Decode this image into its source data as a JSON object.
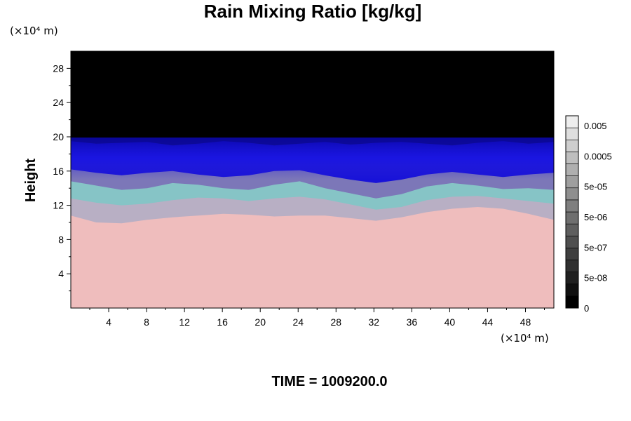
{
  "chart_data": {
    "type": "heatmap",
    "title": "Rain Mixing Ratio [kg/kg]",
    "x_unit_label": "(×10⁴ m)",
    "y_unit_label": "(×10⁴ m)",
    "xlabel": "",
    "ylabel": "Height",
    "x_ticks": [
      "4",
      "8",
      "12",
      "16",
      "20",
      "24",
      "28",
      "32",
      "36",
      "40",
      "44",
      "48"
    ],
    "y_ticks": [
      "4",
      "8",
      "12",
      "16",
      "20",
      "24",
      "28"
    ],
    "xlim": [
      0,
      51
    ],
    "ylim": [
      0,
      30
    ],
    "footer": "TIME = 1009200.0",
    "colorbar": {
      "labels": [
        "0.005",
        "0.0005",
        "5e-05",
        "5e-06",
        "5e-07",
        "5e-08",
        "0"
      ],
      "levels": 16
    },
    "field_layers": [
      {
        "name": "lower",
        "color": "#efbdbd",
        "top_height": [
          10.8,
          10.0,
          9.9,
          10.3,
          10.6,
          10.8,
          11.0,
          10.9,
          10.7,
          10.8,
          10.8,
          10.5,
          10.2,
          10.6,
          11.2,
          11.6,
          11.8,
          11.6,
          11.0,
          10.3
        ]
      },
      {
        "name": "mid",
        "color": "#b8afc4",
        "top_height": [
          12.8,
          12.3,
          12.0,
          12.2,
          12.6,
          12.9,
          12.8,
          12.5,
          12.8,
          13.0,
          12.7,
          12.1,
          11.5,
          11.8,
          12.6,
          13.0,
          13.1,
          12.8,
          12.5,
          12.2
        ]
      },
      {
        "name": "teal",
        "color": "#86c4c6",
        "top_height": [
          14.8,
          14.3,
          13.8,
          14.0,
          14.6,
          14.4,
          14.0,
          13.8,
          14.4,
          14.8,
          14.0,
          13.4,
          12.8,
          13.3,
          14.2,
          14.6,
          14.3,
          13.9,
          14.0,
          13.8
        ]
      },
      {
        "name": "purple",
        "color": "#7c77b8",
        "top_height": [
          16.2,
          15.8,
          15.5,
          15.8,
          16.0,
          15.6,
          15.3,
          15.5,
          16.0,
          16.1,
          15.5,
          15.0,
          14.6,
          15.0,
          15.6,
          15.9,
          15.6,
          15.3,
          15.6,
          15.8
        ]
      },
      {
        "name": "upper",
        "color": "#1812d8",
        "top_height": [
          19.5,
          19.2,
          19.3,
          19.4,
          19.0,
          19.2,
          19.5,
          19.3,
          19.0,
          19.2,
          19.4,
          19.1,
          19.3,
          19.4,
          19.2,
          19.0,
          19.3,
          19.5,
          19.2,
          19.4
        ]
      }
    ],
    "background_color": "#000000"
  }
}
